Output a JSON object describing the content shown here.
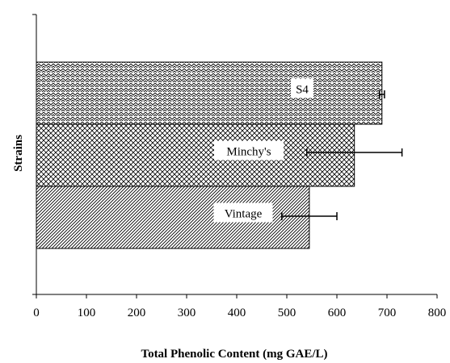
{
  "chart_data": {
    "type": "bar",
    "orientation": "horizontal",
    "title": "",
    "xlabel": "Total Phenolic Content (mg GAE/L)",
    "ylabel": "Strains",
    "xlim": [
      0,
      800
    ],
    "x_ticks": [
      0,
      100,
      200,
      300,
      400,
      500,
      600,
      700,
      800
    ],
    "categories": [
      "S4",
      "Minchy's",
      "Vintage"
    ],
    "values": [
      690,
      635,
      545
    ],
    "errors": [
      5,
      95,
      55
    ],
    "patterns": [
      "zigzag",
      "crosshatch",
      "diagonal"
    ],
    "grid": false,
    "legend": "none",
    "bar_color": "#ffffff",
    "pattern_color": "#000000"
  }
}
